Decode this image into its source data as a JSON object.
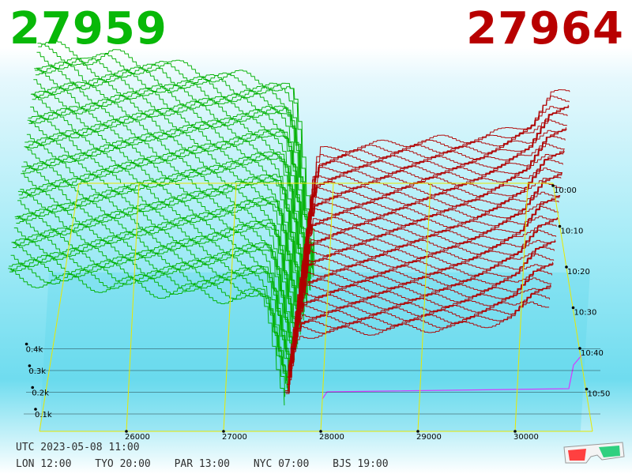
{
  "header": {
    "bid_price": "27959",
    "ask_price": "27964",
    "bid_color": "#08b808",
    "ask_color": "#b80000"
  },
  "footer": {
    "utc": "UTC 2023-05-08 11:00",
    "cities": [
      "LON 12:00",
      "TYO 20:00",
      "PAR 13:00",
      "NYC 07:00",
      "BJS 19:00"
    ]
  },
  "icons": {
    "glasses": "3d-glasses-icon"
  },
  "chart_data": {
    "type": "area",
    "view": "3d-depth-chart",
    "x_ticks": [
      "26000",
      "27000",
      "28000",
      "29000",
      "30000"
    ],
    "x_tick_values": [
      26000,
      27000,
      28000,
      29000,
      30000
    ],
    "xlim": [
      25100,
      30700
    ],
    "z_ticks": [
      "0.1k",
      "0.2k",
      "0.3k",
      "0.4k"
    ],
    "z_tick_values": [
      100,
      200,
      300,
      400
    ],
    "zlim": [
      0,
      480
    ],
    "time_ticks": [
      "10:00",
      "10:10",
      "10:20",
      "10:30",
      "10:40",
      "10:50"
    ],
    "time_tick_minutes": [
      0,
      10,
      20,
      30,
      40,
      50
    ],
    "time_range_minutes": [
      0,
      60
    ],
    "mid_price": 27961,
    "series": [
      {
        "side": "bid",
        "color": "#00b000",
        "price": [
          25100,
          25200,
          25500,
          25600,
          26000,
          26150,
          26350,
          26500,
          26800,
          27000,
          27100,
          27500,
          27700,
          27750,
          27800,
          27880,
          27959
        ],
        "depth": [
          445,
          440,
          435,
          425,
          420,
          415,
          410,
          400,
          395,
          385,
          380,
          375,
          360,
          330,
          270,
          120,
          0
        ]
      },
      {
        "side": "ask",
        "color": "#b00000",
        "price": [
          27964,
          28020,
          28100,
          28400,
          28800,
          29000,
          29400,
          29800,
          30000,
          30200,
          30300,
          30500,
          30700
        ],
        "depth": [
          0,
          150,
          230,
          240,
          245,
          250,
          255,
          260,
          270,
          285,
          290,
          345,
          350
        ]
      }
    ]
  }
}
